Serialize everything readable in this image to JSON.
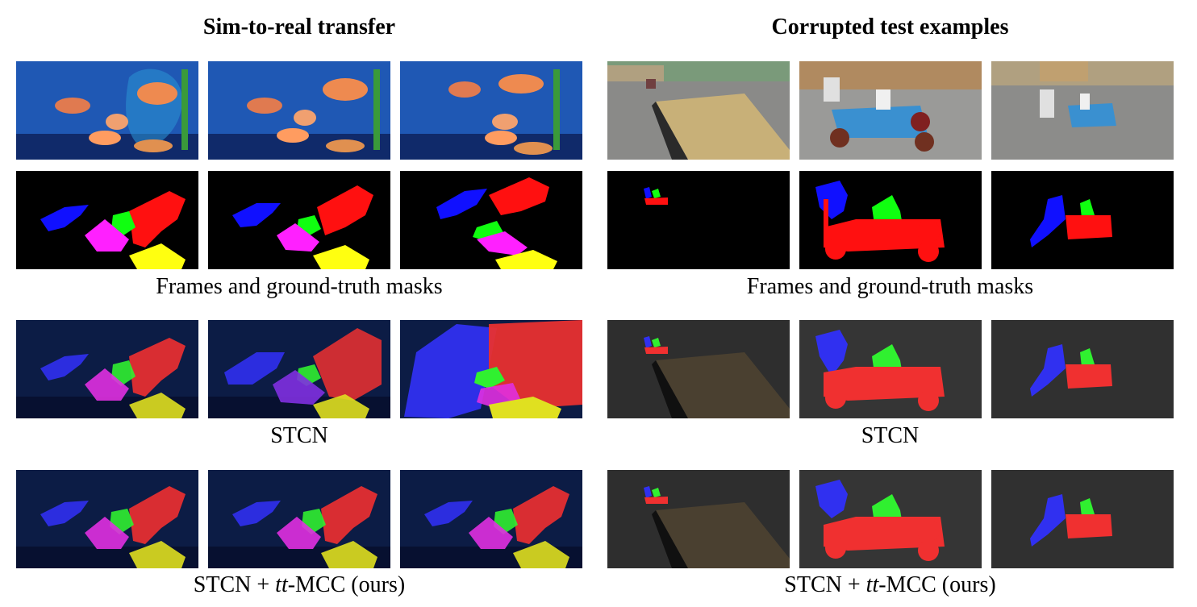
{
  "left_panel": {
    "title": "Sim-to-real transfer",
    "captions": {
      "frames": "Frames and ground-truth masks",
      "baseline": "STCN",
      "ours_prefix": "STCN + ",
      "ours_math": "tt",
      "ours_suffix": "-MCC (ours)"
    }
  },
  "right_panel": {
    "title": "Corrupted test examples",
    "captions": {
      "frames": "Frames and ground-truth masks",
      "baseline": "STCN",
      "ours_prefix": "STCN + ",
      "ours_math": "tt",
      "ours_suffix": "-MCC (ours)"
    }
  },
  "mask_colors": {
    "object_1": "#1010ff",
    "object_2": "#ff1010",
    "object_3": "#10ff10",
    "object_4": "#ff20ff",
    "object_5": "#ffff10"
  }
}
